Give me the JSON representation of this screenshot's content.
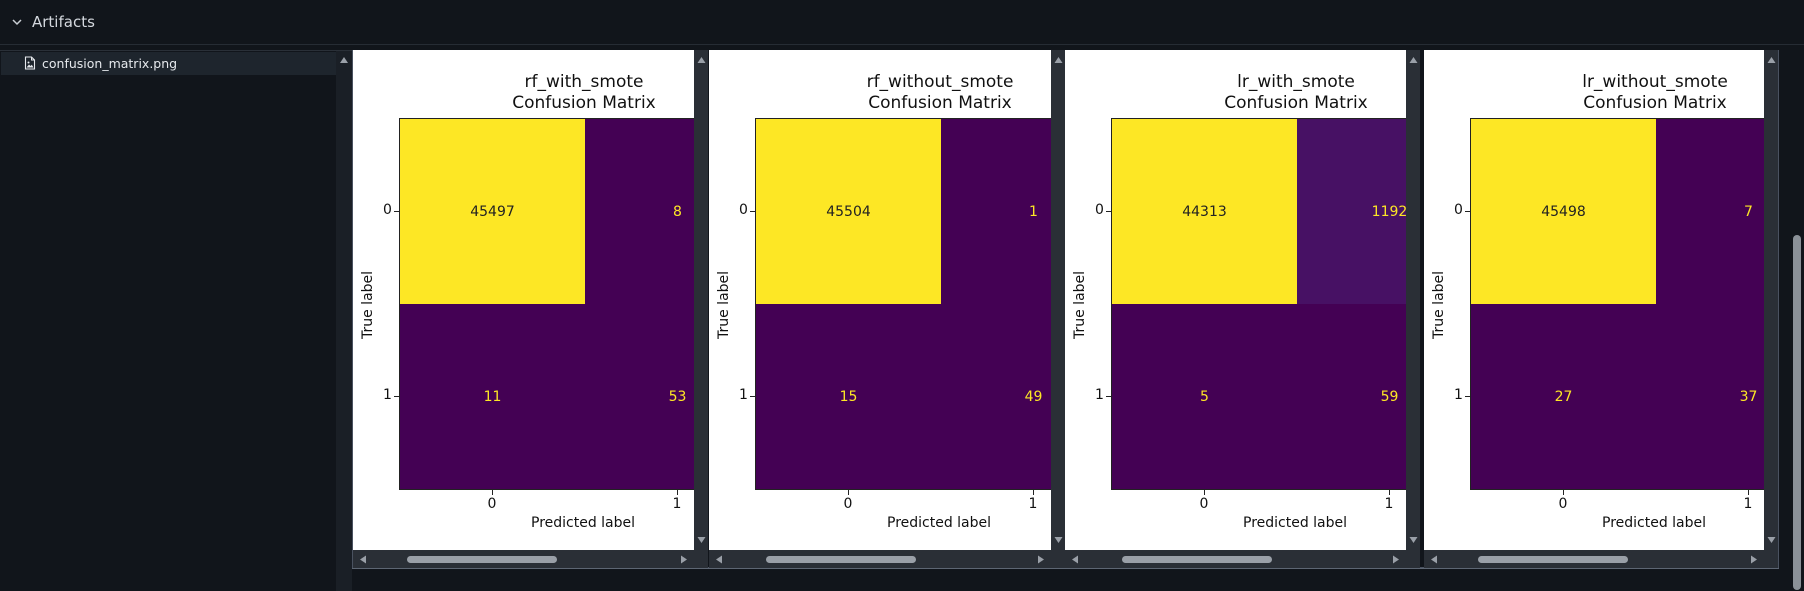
{
  "section": {
    "label": "Artifacts"
  },
  "tree": {
    "items": [
      {
        "label": "confusion_matrix.png",
        "icon": "image-file-icon"
      }
    ]
  },
  "colors": {
    "viridis_high": "#fde725",
    "viridis_low": "#440154",
    "viridis_lr_fp": "#471164",
    "text_on_yellow": "#222222",
    "text_on_purple": "#fde725"
  },
  "panels": [
    {
      "title_line1": "rf_with_smote",
      "title_line2": "Confusion Matrix",
      "xlabel": "Predicted label",
      "ylabel": "True label",
      "x_ticks": [
        "0",
        "1"
      ],
      "y_ticks": [
        "0",
        "1"
      ],
      "values": [
        [
          "45497",
          "8"
        ],
        [
          "11",
          "53"
        ]
      ]
    },
    {
      "title_line1": "rf_without_smote",
      "title_line2": "Confusion Matrix",
      "xlabel": "Predicted label",
      "ylabel": "True label",
      "x_ticks": [
        "0",
        "1"
      ],
      "y_ticks": [
        "0",
        "1"
      ],
      "values": [
        [
          "45504",
          "1"
        ],
        [
          "15",
          "49"
        ]
      ]
    },
    {
      "title_line1": "lr_with_smote",
      "title_line2": "Confusion Matrix",
      "xlabel": "Predicted label",
      "ylabel": "True label",
      "x_ticks": [
        "0",
        "1"
      ],
      "y_ticks": [
        "0",
        "1"
      ],
      "values": [
        [
          "44313",
          "1192"
        ],
        [
          "5",
          "59"
        ]
      ]
    },
    {
      "title_line1": "lr_without_smote",
      "title_line2": "Confusion Matrix",
      "xlabel": "Predicted label",
      "ylabel": "True label",
      "x_ticks": [
        "0",
        "1"
      ],
      "y_ticks": [
        "0",
        "1"
      ],
      "values": [
        [
          "45498",
          "7"
        ],
        [
          "27",
          "37"
        ]
      ]
    }
  ]
}
